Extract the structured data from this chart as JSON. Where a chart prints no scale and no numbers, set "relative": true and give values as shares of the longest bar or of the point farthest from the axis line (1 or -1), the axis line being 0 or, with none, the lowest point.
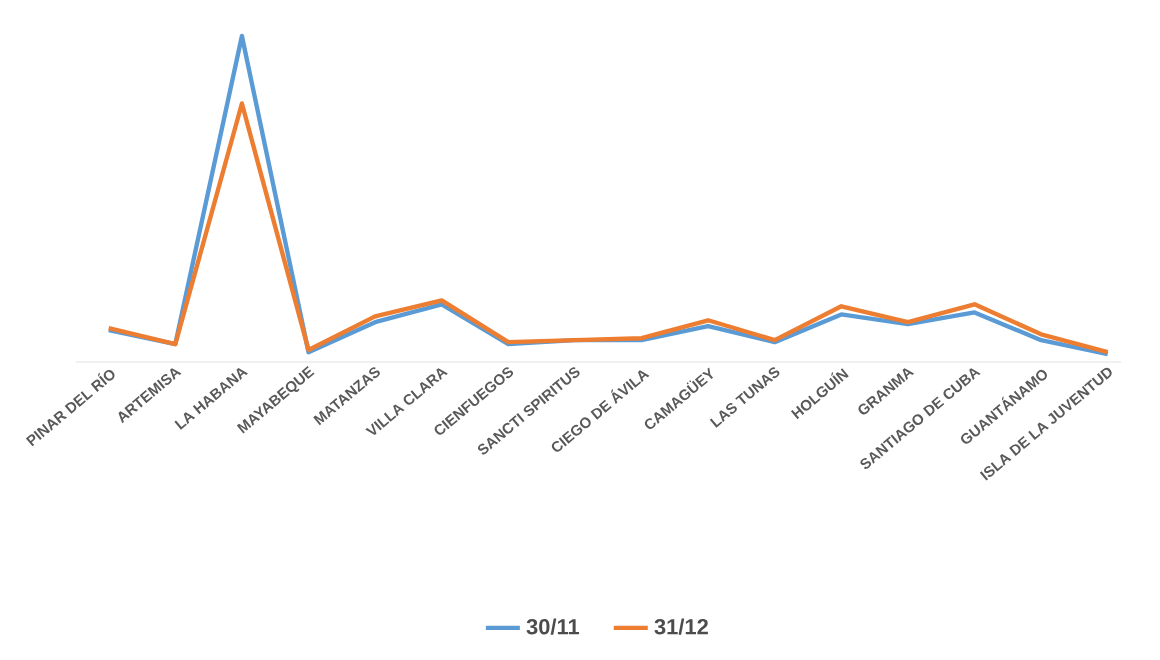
{
  "chart_data": {
    "type": "line",
    "relative": true,
    "legend": "bottom",
    "marker": "none",
    "line_style": "solid",
    "categories": [
      "PINAR DEL RÍO",
      "ARTEMISA",
      "LA HABANA",
      "MAYABEQUE",
      "MATANZAS",
      "VILLA CLARA",
      "CIENFUEGOS",
      "SANCTI SPIRITUS",
      "CIEGO DE ÁVILA",
      "CAMAGÜEY",
      "LAS TUNAS",
      "HOLGUÍN",
      "GRANMA",
      "SANTIAGO DE CUBA",
      "GUANTÁNAMO",
      "ISLA DE LA JUVENTUD"
    ],
    "series": [
      {
        "name": "30/11",
        "color": "#5b9bd5",
        "values": [
          0.098,
          0.055,
          1,
          0.03,
          0.122,
          0.177,
          0.055,
          0.067,
          0.067,
          0.11,
          0.061,
          0.146,
          0.116,
          0.152,
          0.067,
          0.024
        ]
      },
      {
        "name": "31/12",
        "color": "#ed7d31",
        "values": [
          0.104,
          0.055,
          0.793,
          0.037,
          0.14,
          0.189,
          0.061,
          0.067,
          0.073,
          0.128,
          0.067,
          0.171,
          0.122,
          0.177,
          0.085,
          0.03
        ]
      }
    ]
  }
}
